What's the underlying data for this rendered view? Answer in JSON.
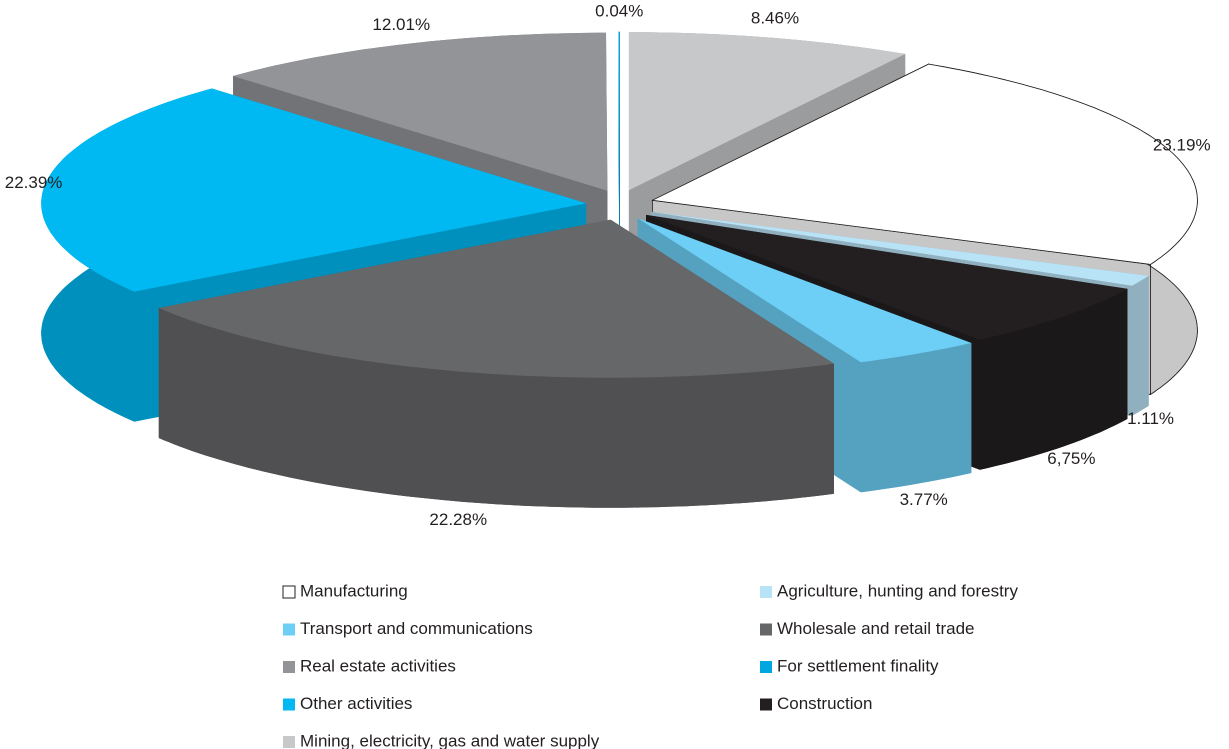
{
  "chart_data": {
    "type": "pie",
    "categories": [
      "Mining, electricity, gas and water supply",
      "Manufacturing",
      "Agriculture, hunting and forestry",
      "Construction",
      "Transport and communications",
      "Wholesale and retail trade",
      "Other activities",
      "Real estate activities",
      "For settlement finality"
    ],
    "values": [
      8.46,
      23.19,
      1.11,
      6.75,
      3.77,
      22.28,
      22.39,
      12.01,
      0.04
    ],
    "value_labels": [
      "8.46%",
      "23.19%",
      "1.11%",
      "6,75%",
      "3.77%",
      "22.28%",
      "22.39%",
      "12.01%",
      "0.04%"
    ],
    "colors": [
      "#c7c8ca",
      "#ffffff",
      "#b8e2f5",
      "#231f20",
      "#6dcff6",
      "#666769",
      "#00b9f2",
      "#929497",
      "#00a6e0"
    ]
  }
}
